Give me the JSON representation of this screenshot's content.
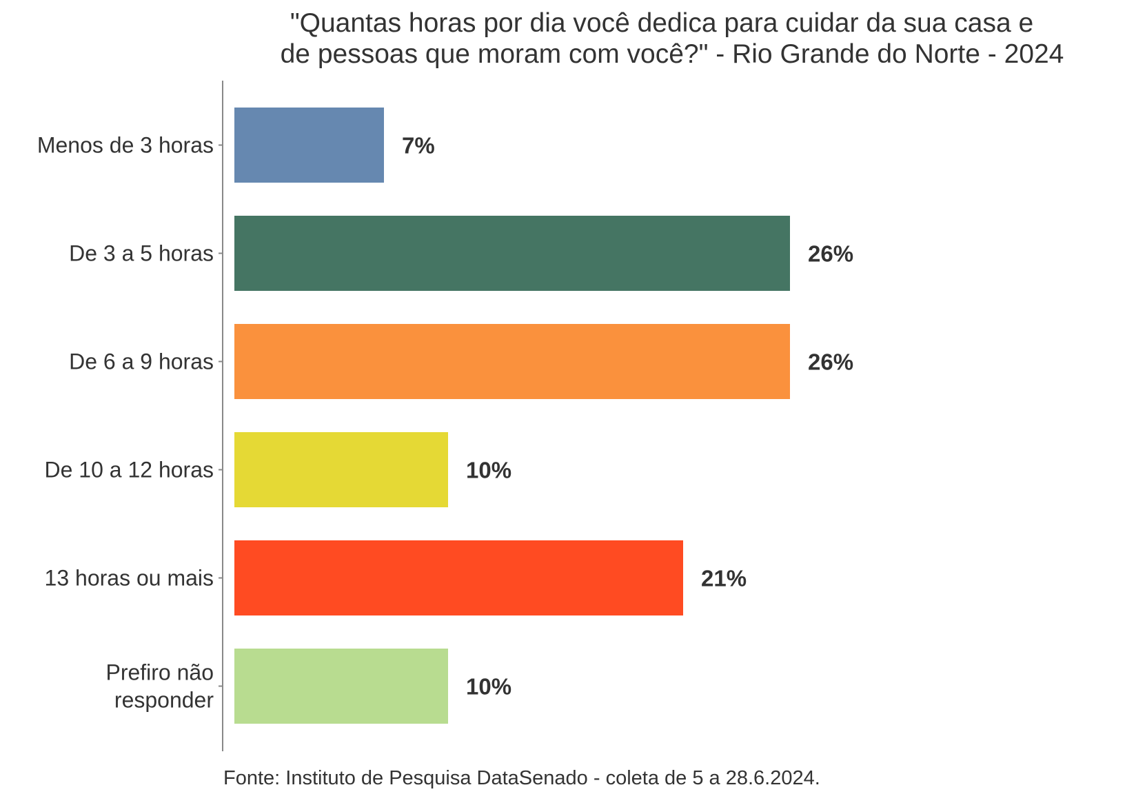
{
  "chart_data": {
    "type": "bar",
    "orientation": "horizontal",
    "title": [
      "\"Quantas horas por dia você dedica para cuidar da sua casa e",
      "de pessoas que moram com você?\" - Rio Grande do Norte - 2024"
    ],
    "categories": [
      [
        "Menos de 3 horas"
      ],
      [
        "De 3 a 5 horas"
      ],
      [
        "De 6 a 9 horas"
      ],
      [
        "De 10 a 12 horas"
      ],
      [
        "13 horas ou mais"
      ],
      [
        "Prefiro não",
        "responder"
      ]
    ],
    "values": [
      7,
      26,
      26,
      10,
      21,
      10
    ],
    "labels": [
      "7%",
      "26%",
      "26%",
      "10%",
      "21%",
      "10%"
    ],
    "colors": [
      "#6688B0",
      "#457563",
      "#FA913D",
      "#E5D935",
      "#FF4B22",
      "#B8DC90"
    ],
    "xlabel": "",
    "ylabel": "",
    "xlim": [
      0,
      40
    ],
    "grid": false,
    "source": "Fonte: Instituto de Pesquisa DataSenado - coleta de 5 a 28.6.2024."
  }
}
